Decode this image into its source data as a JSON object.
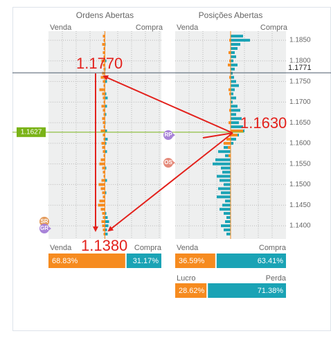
{
  "panels": [
    {
      "title": "Ordens Abertas",
      "left_label": "Venda",
      "right_label": "Compra",
      "series": [
        {
          "color": "#f68b1f",
          "side": "left",
          "values": [
            3,
            2,
            4,
            2,
            3,
            2,
            5,
            3,
            2,
            4,
            6,
            3,
            2,
            8,
            4,
            3,
            2,
            5,
            3,
            2,
            4,
            3,
            2,
            6,
            3,
            2,
            5,
            4,
            3,
            2,
            6,
            8,
            4,
            3,
            2,
            5,
            9,
            6,
            4,
            3,
            8,
            10,
            6,
            4,
            3,
            5,
            4,
            3,
            2
          ]
        },
        {
          "color": "#1aa3b5",
          "side": "right",
          "values": [
            0,
            0,
            1,
            0,
            0,
            0,
            2,
            0,
            1,
            0,
            0,
            3,
            0,
            0,
            2,
            4,
            0,
            3,
            0,
            2,
            0,
            1,
            0,
            3,
            0,
            4,
            2,
            0,
            3,
            0,
            0,
            0,
            2,
            0,
            0,
            3,
            0,
            0,
            2,
            0,
            0,
            0,
            0,
            2,
            4,
            6,
            5,
            3,
            4
          ]
        }
      ],
      "split": {
        "left_label": "Venda",
        "right_label": "Compra",
        "colors": [
          "#f68b1f",
          "#1aa3b5"
        ],
        "values": [
          68.83,
          31.17
        ],
        "value_labels": [
          "68.83%",
          "31.17%"
        ]
      }
    },
    {
      "title": "Posições Abertas",
      "left_label": "Venda",
      "right_label": "Compra",
      "series": [
        {
          "color": "#1aa3b5",
          "side": "right",
          "values": [
            18,
            28,
            14,
            10,
            6,
            8,
            4,
            10,
            6,
            3,
            5,
            8,
            12,
            6,
            4,
            8,
            3,
            10,
            14,
            8,
            16,
            12,
            18,
            20,
            12,
            8,
            4,
            0,
            0,
            0,
            0,
            0,
            0,
            0,
            0,
            0,
            0,
            0,
            0,
            0,
            0,
            0,
            0,
            0,
            0,
            0,
            0,
            0,
            0
          ]
        },
        {
          "color": "#1aa3b5",
          "side": "left",
          "values": [
            0,
            0,
            0,
            0,
            0,
            0,
            0,
            0,
            0,
            0,
            0,
            0,
            0,
            0,
            0,
            0,
            0,
            0,
            0,
            0,
            0,
            0,
            0,
            0,
            0,
            0,
            0,
            10,
            18,
            8,
            22,
            26,
            14,
            12,
            20,
            16,
            10,
            18,
            14,
            20,
            8,
            12,
            16,
            10,
            6,
            8,
            14,
            10,
            6
          ]
        },
        {
          "color": "#f68b1f",
          "side": "left",
          "values": [
            0,
            2,
            0,
            0,
            3,
            0,
            2,
            4,
            0,
            0,
            2,
            0,
            0,
            3,
            2,
            0,
            0,
            0,
            2,
            0,
            0,
            3,
            0,
            0,
            2,
            6,
            10,
            4,
            0,
            3,
            0,
            0,
            0,
            0,
            0,
            0,
            0,
            0,
            0,
            0,
            0,
            0,
            0,
            0,
            0,
            0,
            0,
            0,
            0
          ]
        },
        {
          "color": "#f68b1f",
          "side": "right",
          "values": [
            0,
            0,
            0,
            0,
            0,
            0,
            0,
            0,
            0,
            0,
            0,
            0,
            0,
            0,
            0,
            0,
            0,
            0,
            0,
            0,
            0,
            0,
            0,
            18,
            10,
            0,
            0,
            0,
            0,
            0,
            0,
            0,
            0,
            0,
            0,
            0,
            0,
            0,
            0,
            0,
            0,
            0,
            0,
            0,
            0,
            0,
            0,
            0,
            0
          ]
        }
      ],
      "split": {
        "left_label": "Venda",
        "right_label": "Compra",
        "colors": [
          "#f68b1f",
          "#1aa3b5"
        ],
        "values": [
          36.59,
          63.41
        ],
        "value_labels": [
          "36.59%",
          "63.41%"
        ]
      }
    }
  ],
  "profit": {
    "left_label": "Lucro",
    "right_label": "Perda",
    "colors": [
      "#f68b1f",
      "#1aa3b5"
    ],
    "values": [
      28.62,
      71.38
    ],
    "value_labels": [
      "28.62%",
      "71.38%"
    ]
  },
  "prices": [
    1.186,
    1.185,
    1.184,
    1.183,
    1.182,
    1.181,
    1.18,
    1.179,
    1.178,
    1.177,
    1.176,
    1.175,
    1.174,
    1.173,
    1.172,
    1.171,
    1.17,
    1.169,
    1.168,
    1.167,
    1.166,
    1.165,
    1.164,
    1.163,
    1.162,
    1.161,
    1.16,
    1.159,
    1.158,
    1.157,
    1.156,
    1.155,
    1.154,
    1.153,
    1.152,
    1.151,
    1.15,
    1.149,
    1.148,
    1.147,
    1.146,
    1.145,
    1.144,
    1.143,
    1.142,
    1.141,
    1.14,
    1.139,
    1.138
  ],
  "ylim": [
    1.1368,
    1.1872
  ],
  "yticks": [
    {
      "value": 1.185,
      "label": "1.1850"
    },
    {
      "value": 1.18,
      "label": "1.1800"
    },
    {
      "value": 1.175,
      "label": "1.1750"
    },
    {
      "value": 1.17,
      "label": "1.1700"
    },
    {
      "value": 1.165,
      "label": "1.1650"
    },
    {
      "value": 1.16,
      "label": "1.1600"
    },
    {
      "value": 1.155,
      "label": "1.1550"
    },
    {
      "value": 1.15,
      "label": "1.1500"
    },
    {
      "value": 1.145,
      "label": "1.1450"
    },
    {
      "value": 1.14,
      "label": "1.1400"
    }
  ],
  "current_price": {
    "value": 1.1771,
    "label": "1.1771"
  },
  "marked_price": {
    "value": 1.1627,
    "label": "1.1627"
  },
  "annotations": [
    "1.1770",
    "1.1630",
    "1.1380"
  ],
  "markers": [
    "RP",
    "OS",
    "SR",
    "GR"
  ]
}
